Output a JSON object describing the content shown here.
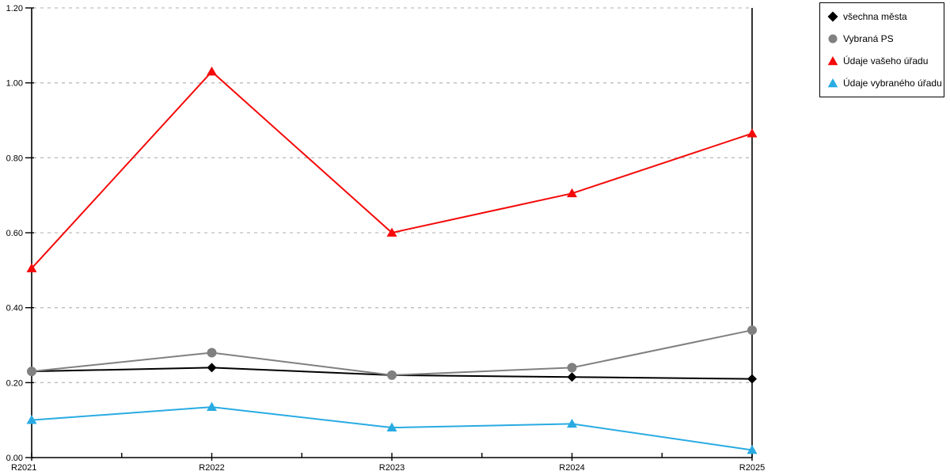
{
  "chart_data": {
    "type": "line",
    "title": "",
    "xlabel": "",
    "ylabel": "",
    "x_categories": [
      "R2021",
      "R2022",
      "R2023",
      "R2024",
      "R2025"
    ],
    "y_tick_labels": [
      "0.00",
      "0.20",
      "0.40",
      "0.60",
      "0.80",
      "1.00",
      "1.20"
    ],
    "ylim": [
      0.0,
      1.2
    ],
    "y_tick_step": 0.2,
    "grid": "horizontal-dashed",
    "legend_position": "outside-top-right",
    "series": [
      {
        "name": "všechna města",
        "marker": "diamond",
        "color": "#000000",
        "values": [
          0.23,
          0.24,
          0.22,
          0.215,
          0.21
        ]
      },
      {
        "name": "Vybraná PS",
        "marker": "circle",
        "color": "#808080",
        "values": [
          0.23,
          0.28,
          0.22,
          0.24,
          0.34
        ]
      },
      {
        "name": "Údaje vašeho úřadu",
        "marker": "triangle",
        "color": "#f40a0a",
        "values": [
          0.505,
          1.03,
          0.6,
          0.705,
          0.865
        ]
      },
      {
        "name": "Údaje vybraného úřadu",
        "marker": "triangle",
        "color": "#29abe2",
        "values": [
          0.1,
          0.135,
          0.08,
          0.09,
          0.02
        ]
      }
    ],
    "colors": {
      "axis": "#000000",
      "gridline": "#bdbdbd",
      "background": "#ffffff",
      "tick_text": "#000000"
    }
  }
}
